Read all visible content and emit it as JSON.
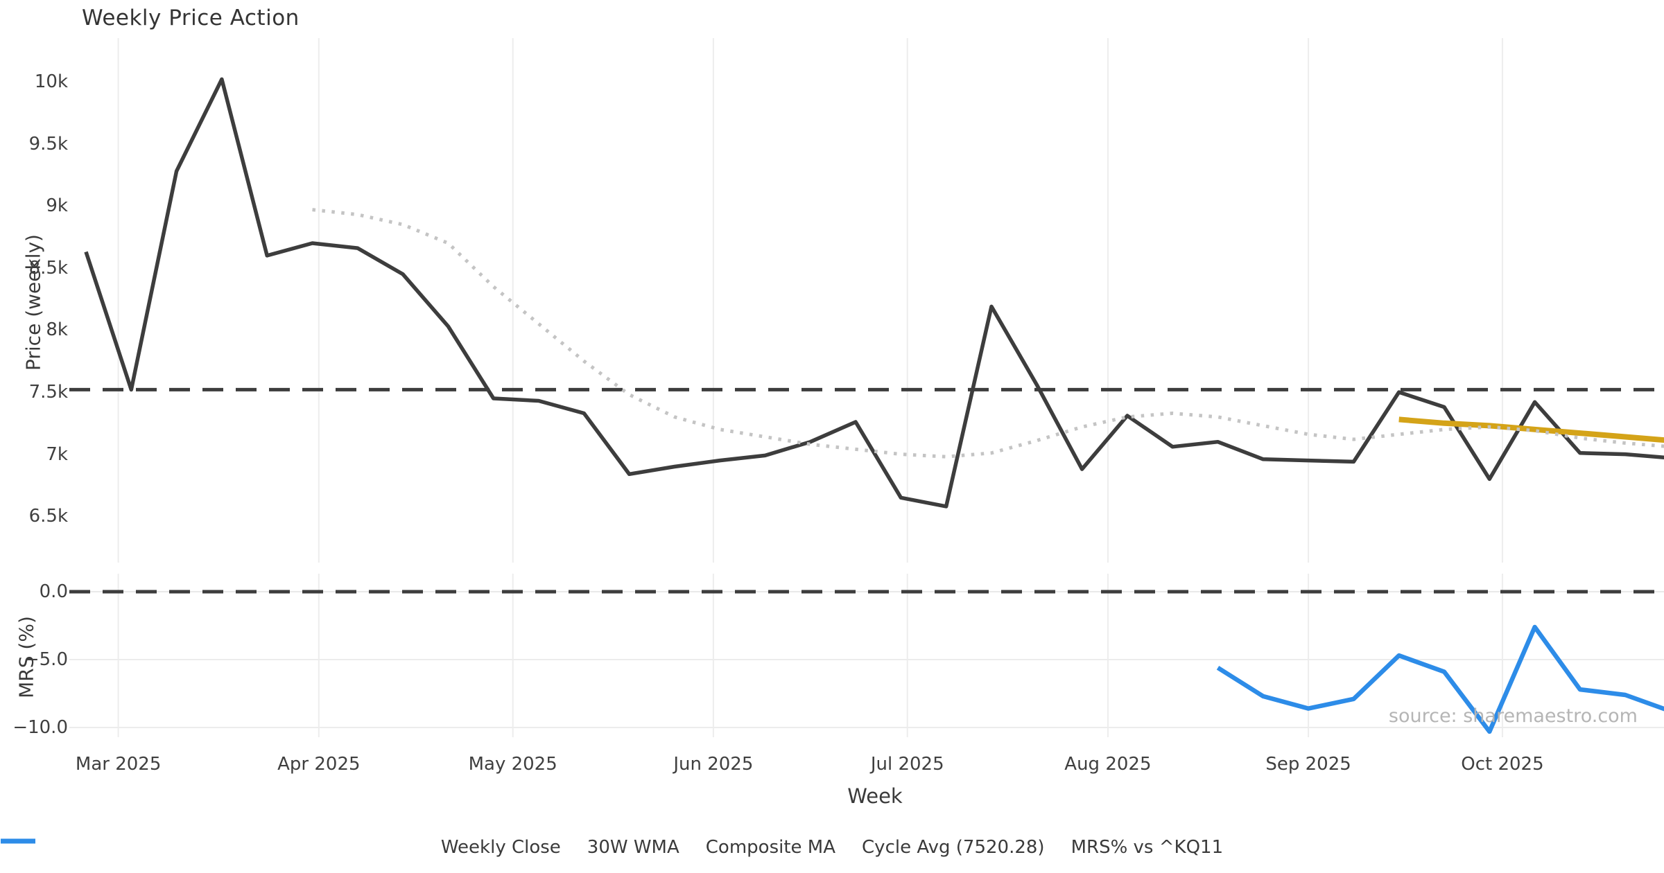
{
  "title": "Weekly Price Action",
  "watermark": "source: sharemaestro.com",
  "colors": {
    "close": "#3d3d3d",
    "wma": "#d4a318",
    "composite": "#c4c4c4",
    "cycle": "#3d3d3d",
    "mrs": "#2d8ce8",
    "grid": "#ededed",
    "tick_text": "#3f3f3f",
    "background": "#ffffff"
  },
  "chart_data": {
    "type": "line",
    "title": "Weekly Price Action",
    "xlabel": "Week",
    "grid": "vertical month gridlines on both panels, horizontal gridlines on MRS panel",
    "legend_position": "bottom-center",
    "x_dates": [
      "2025-02-24",
      "2025-03-03",
      "2025-03-10",
      "2025-03-17",
      "2025-03-24",
      "2025-03-31",
      "2025-04-07",
      "2025-04-14",
      "2025-04-21",
      "2025-04-28",
      "2025-05-05",
      "2025-05-12",
      "2025-05-19",
      "2025-05-26",
      "2025-06-02",
      "2025-06-09",
      "2025-06-16",
      "2025-06-23",
      "2025-06-30",
      "2025-07-07",
      "2025-07-14",
      "2025-07-21",
      "2025-07-28",
      "2025-08-04",
      "2025-08-11",
      "2025-08-18",
      "2025-08-25",
      "2025-09-01",
      "2025-09-08",
      "2025-09-15",
      "2025-09-22",
      "2025-09-29",
      "2025-10-06",
      "2025-10-13",
      "2025-10-20",
      "2025-10-27"
    ],
    "month_ticks": [
      {
        "label": "Mar 2025",
        "date": "2025-03-01"
      },
      {
        "label": "Apr 2025",
        "date": "2025-04-01"
      },
      {
        "label": "May 2025",
        "date": "2025-05-01"
      },
      {
        "label": "Jun 2025",
        "date": "2025-06-01"
      },
      {
        "label": "Jul 2025",
        "date": "2025-07-01"
      },
      {
        "label": "Aug 2025",
        "date": "2025-08-01"
      },
      {
        "label": "Sep 2025",
        "date": "2025-09-01"
      },
      {
        "label": "Oct 2025",
        "date": "2025-10-01"
      }
    ],
    "panels": [
      {
        "id": "price",
        "ylabel": "Price (weekly)",
        "ylim": [
          6150,
          10350
        ],
        "yticks": [
          {
            "label": "10k",
            "value": 10000
          },
          {
            "label": "9.5k",
            "value": 9500
          },
          {
            "label": "9k",
            "value": 9000
          },
          {
            "label": "8.5k",
            "value": 8500
          },
          {
            "label": "8k",
            "value": 8000
          },
          {
            "label": "7.5k",
            "value": 7500
          },
          {
            "label": "7k",
            "value": 7000
          },
          {
            "label": "6.5k",
            "value": 6500
          }
        ]
      },
      {
        "id": "mrs",
        "ylabel": "MRS (%)",
        "ylim": [
          -10.75,
          1.25
        ],
        "yticks": [
          {
            "label": "0.0",
            "value": 0
          },
          {
            "label": "−5.0",
            "value": -5
          },
          {
            "label": "−10.0",
            "value": -10
          }
        ],
        "hgrid_values": [
          -5,
          -10
        ],
        "zero_reference_dashed": true
      }
    ],
    "series": [
      {
        "name": "Weekly Close",
        "panel": "price",
        "style": "solid",
        "color_key": "close",
        "width": 5.5,
        "values": [
          8630,
          7520,
          9280,
          10020,
          8600,
          8700,
          8660,
          8450,
          8030,
          7450,
          7430,
          7330,
          6840,
          6900,
          6950,
          6990,
          7100,
          7260,
          6650,
          6580,
          8190,
          7560,
          6880,
          7310,
          7060,
          7100,
          6960,
          6950,
          6940,
          7500,
          7380,
          6800,
          7420,
          7010,
          7000,
          6970
        ]
      },
      {
        "name": "30W WMA",
        "panel": "price",
        "style": "solid",
        "color_key": "wma",
        "width": 8,
        "values": [
          null,
          null,
          null,
          null,
          null,
          null,
          null,
          null,
          null,
          null,
          null,
          null,
          null,
          null,
          null,
          null,
          null,
          null,
          null,
          null,
          null,
          null,
          null,
          null,
          null,
          null,
          null,
          null,
          null,
          7280,
          7250,
          7230,
          7200,
          7170,
          7140,
          7110
        ]
      },
      {
        "name": "Composite MA",
        "panel": "price",
        "style": "dotted",
        "color_key": "composite",
        "width": 5,
        "values": [
          null,
          null,
          null,
          null,
          null,
          8970,
          8930,
          8850,
          8700,
          8350,
          8050,
          7750,
          7480,
          7300,
          7200,
          7140,
          7080,
          7040,
          7000,
          6980,
          7010,
          7110,
          7220,
          7300,
          7330,
          7300,
          7230,
          7160,
          7120,
          7160,
          7200,
          7220,
          7190,
          7130,
          7090,
          7060
        ]
      },
      {
        "name": "MRS% vs ^KQ11",
        "panel": "mrs",
        "style": "solid",
        "color_key": "mrs",
        "width": 6.5,
        "values": [
          null,
          null,
          null,
          null,
          null,
          null,
          null,
          null,
          null,
          null,
          null,
          null,
          null,
          null,
          null,
          null,
          null,
          null,
          null,
          null,
          null,
          null,
          null,
          null,
          null,
          -5.6,
          -7.7,
          -8.6,
          -7.9,
          -4.7,
          -5.9,
          -10.3,
          -2.6,
          -7.2,
          -7.6,
          -8.8
        ]
      }
    ],
    "reference_lines": [
      {
        "name": "Cycle Avg (7520.28)",
        "panel": "price",
        "value": 7520.28,
        "style": "dashed",
        "color_key": "cycle",
        "width": 5
      }
    ],
    "legend": [
      {
        "label": "Weekly Close",
        "style": "solid",
        "color_key": "close"
      },
      {
        "label": "30W WMA",
        "style": "solid",
        "color_key": "wma"
      },
      {
        "label": "Composite MA",
        "style": "dotted",
        "color_key": "composite"
      },
      {
        "label": "Cycle Avg (7520.28)",
        "style": "dashed",
        "color_key": "cycle"
      },
      {
        "label": "MRS% vs ^KQ11",
        "style": "solid",
        "color_key": "mrs"
      }
    ]
  }
}
